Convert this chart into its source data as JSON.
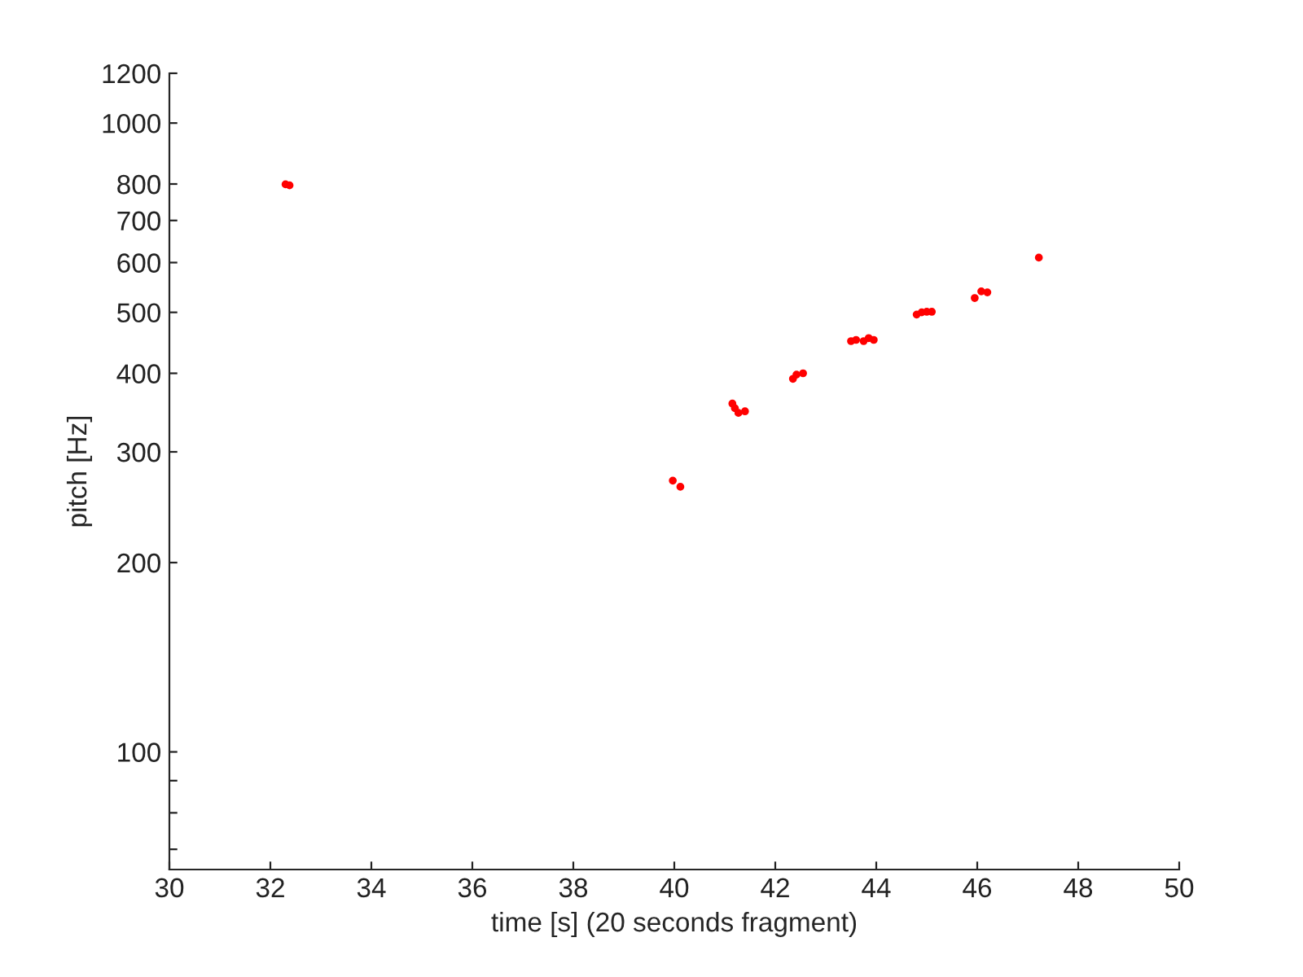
{
  "chart_data": {
    "type": "scatter",
    "xlabel": "time [s] (20 seconds fragment)",
    "ylabel": "pitch [Hz]",
    "x": [
      32.3,
      32.38,
      39.97,
      40.12,
      41.15,
      41.2,
      41.27,
      41.4,
      42.35,
      42.42,
      42.55,
      43.5,
      43.6,
      43.75,
      43.85,
      43.95,
      44.8,
      44.9,
      45.0,
      45.1,
      45.95,
      46.08,
      46.2,
      47.22
    ],
    "values": [
      799,
      796,
      270,
      264,
      358,
      352,
      346,
      348,
      392,
      398,
      400,
      450,
      452,
      450,
      455,
      452,
      496,
      500,
      501,
      501,
      527,
      540,
      538,
      611
    ],
    "color": "#ff0000",
    "marker": "circle",
    "log": "y",
    "grid": false,
    "legend": false,
    "xlim": [
      30,
      50
    ],
    "xticks": [
      30,
      32,
      34,
      36,
      38,
      40,
      42,
      44,
      46,
      48,
      50
    ],
    "ylim": [
      65,
      1200
    ],
    "yticks": [
      {
        "value": 70,
        "label": null
      },
      {
        "value": 80,
        "label": null
      },
      {
        "value": 90,
        "label": null
      },
      100,
      200,
      300,
      400,
      500,
      600,
      700,
      800,
      1000,
      1200
    ]
  }
}
